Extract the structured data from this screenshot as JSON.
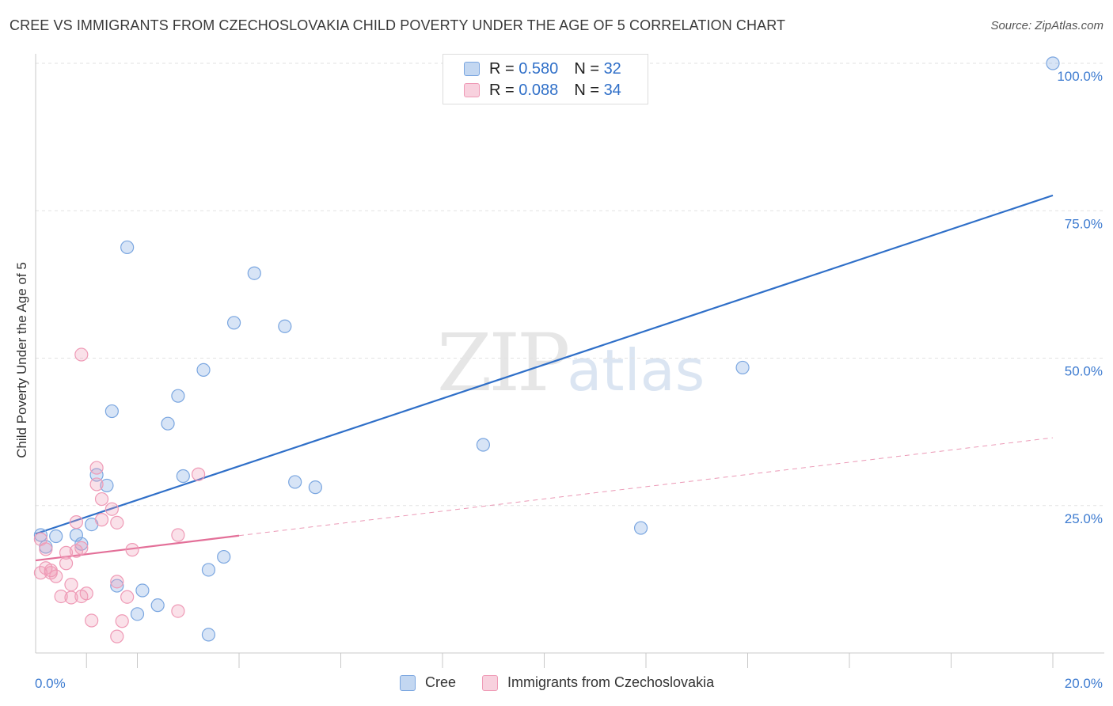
{
  "header": {
    "title": "CREE VS IMMIGRANTS FROM CZECHOSLOVAKIA CHILD POVERTY UNDER THE AGE OF 5 CORRELATION CHART",
    "source": "Source: ZipAtlas.com"
  },
  "watermark": {
    "zip": "ZIP",
    "atlas": "atlas"
  },
  "legend": {
    "rows": [
      {
        "r_label": "R =",
        "r_value": "0.580",
        "n_label": "N =",
        "n_value": "32",
        "color": "#7aa6e0"
      },
      {
        "r_label": "R =",
        "r_value": "0.088",
        "n_label": "N =",
        "n_value": "34",
        "color": "#ef9ab6"
      }
    ]
  },
  "bottom_legend": {
    "items": [
      {
        "label": "Cree",
        "color": "#7aa6e0"
      },
      {
        "label": "Immigrants from Czechoslovakia",
        "color": "#ef9ab6"
      }
    ]
  },
  "chart_data": {
    "type": "scatter",
    "title": "CREE VS IMMIGRANTS FROM CZECHOSLOVAKIA CHILD POVERTY UNDER THE AGE OF 5 CORRELATION CHART",
    "xlabel": "",
    "ylabel": "Child Poverty Under the Age of 5",
    "xlim": [
      0,
      20
    ],
    "ylim": [
      0,
      100
    ],
    "x_tick_labels": [
      "0.0%",
      "20.0%"
    ],
    "y_tick_labels": [
      "25.0%",
      "50.0%",
      "75.0%",
      "100.0%"
    ],
    "y_ticks": [
      25,
      50,
      75,
      100
    ],
    "legend_position": "top-center",
    "series": [
      {
        "name": "Cree",
        "color": "#7aa6e0",
        "line_color": "#2f6fc8",
        "points": [
          [
            0.1,
            20.0
          ],
          [
            0.2,
            18.0
          ],
          [
            0.4,
            19.8
          ],
          [
            0.8,
            20.0
          ],
          [
            0.9,
            18.5
          ],
          [
            1.1,
            21.8
          ],
          [
            1.2,
            30.2
          ],
          [
            1.4,
            28.4
          ],
          [
            1.5,
            41.0
          ],
          [
            1.6,
            11.4
          ],
          [
            1.8,
            68.8
          ],
          [
            2.0,
            6.6
          ],
          [
            2.1,
            10.6
          ],
          [
            2.4,
            8.1
          ],
          [
            2.6,
            38.9
          ],
          [
            2.8,
            43.6
          ],
          [
            2.9,
            30.0
          ],
          [
            3.3,
            48.0
          ],
          [
            3.4,
            14.1
          ],
          [
            3.4,
            3.1
          ],
          [
            3.7,
            16.3
          ],
          [
            3.9,
            56.0
          ],
          [
            4.3,
            64.4
          ],
          [
            4.9,
            55.4
          ],
          [
            5.1,
            29.0
          ],
          [
            5.5,
            28.1
          ],
          [
            8.8,
            35.3
          ],
          [
            11.9,
            21.2
          ],
          [
            13.9,
            48.4
          ],
          [
            20.0,
            100.0
          ]
        ],
        "trend": {
          "x": [
            0.0,
            20.0
          ],
          "y": [
            20.2,
            77.6
          ],
          "style": "solid"
        }
      },
      {
        "name": "Immigrants from Czechoslovakia",
        "color": "#ef9ab6",
        "line_color": "#e36f98",
        "points": [
          [
            0.1,
            19.3
          ],
          [
            0.1,
            13.6
          ],
          [
            0.2,
            17.6
          ],
          [
            0.2,
            14.4
          ],
          [
            0.3,
            13.6
          ],
          [
            0.3,
            14.0
          ],
          [
            0.4,
            13.0
          ],
          [
            0.5,
            9.6
          ],
          [
            0.6,
            17.0
          ],
          [
            0.6,
            15.2
          ],
          [
            0.7,
            9.4
          ],
          [
            0.7,
            11.6
          ],
          [
            0.8,
            17.3
          ],
          [
            0.8,
            22.2
          ],
          [
            0.9,
            17.8
          ],
          [
            0.9,
            50.6
          ],
          [
            0.9,
            9.6
          ],
          [
            1.0,
            10.1
          ],
          [
            1.1,
            5.5
          ],
          [
            1.2,
            31.4
          ],
          [
            1.2,
            28.6
          ],
          [
            1.3,
            26.1
          ],
          [
            1.3,
            22.6
          ],
          [
            1.5,
            24.4
          ],
          [
            1.6,
            22.1
          ],
          [
            1.6,
            12.1
          ],
          [
            1.6,
            2.8
          ],
          [
            1.7,
            5.4
          ],
          [
            1.8,
            9.5
          ],
          [
            1.9,
            17.5
          ],
          [
            2.8,
            20.0
          ],
          [
            2.8,
            7.1
          ],
          [
            3.2,
            30.3
          ]
        ],
        "trend": {
          "x": [
            0.0,
            4.0
          ],
          "y": [
            15.7,
            19.9
          ],
          "style": "solid"
        },
        "trend_extension": {
          "x": [
            4.0,
            20.0
          ],
          "y": [
            19.9,
            36.5
          ],
          "style": "dashed"
        }
      }
    ]
  }
}
